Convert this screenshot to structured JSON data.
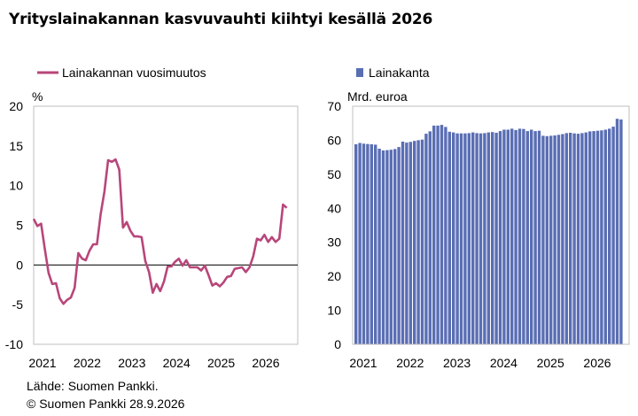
{
  "title": "Yrityslainakannan kasvuvauhti kiihtyi kesällä 2026",
  "source": "Lähde: Suomen Pankki.",
  "copyright": "© Suomen Pankki 28.9.2026",
  "colors": {
    "line": "#b8467a",
    "bar": "#5a6eb4",
    "axis": "#000000",
    "frame": "#bfbfbf"
  },
  "chart_data": [
    {
      "type": "line",
      "legend": "Lainakannan vuosimuutos",
      "unit": "%",
      "x_start": "2021-01",
      "x_tick_labels": [
        "2021",
        "2022",
        "2023",
        "2024",
        "2025",
        "2026"
      ],
      "ylim": [
        -10,
        20
      ],
      "y_ticks": [
        20,
        15,
        10,
        5,
        0,
        -5,
        -10
      ],
      "grid": false,
      "series": [
        {
          "values": [
            5.8,
            4.9,
            5.2,
            2.0,
            -1.0,
            -2.4,
            -2.3,
            -4.2,
            -4.9,
            -4.4,
            -4.1,
            -2.9,
            1.5,
            0.8,
            0.6,
            1.8,
            2.6,
            2.6,
            6.4,
            9.2,
            13.2,
            13.0,
            13.3,
            12.0,
            4.7,
            5.4,
            4.3,
            3.6,
            3.6,
            3.5,
            0.5,
            -0.9,
            -3.5,
            -2.4,
            -3.3,
            -2.1,
            -0.2,
            -0.2,
            0.4,
            0.8,
            -0.1,
            0.6,
            -0.3,
            -0.3,
            -0.3,
            -0.7,
            -0.1,
            -1.3,
            -2.6,
            -2.3,
            -2.7,
            -2.2,
            -1.5,
            -1.4,
            -0.5,
            -0.4,
            -0.3,
            -0.9,
            -0.3,
            1.1,
            3.3,
            3.1,
            3.8,
            2.9,
            3.5,
            2.9,
            3.3,
            7.6,
            7.2
          ]
        }
      ]
    },
    {
      "type": "bar",
      "legend": "Lainakanta",
      "unit": "Mrd. euroa",
      "x_start": "2021-01",
      "x_tick_labels": [
        "2021",
        "2022",
        "2023",
        "2024",
        "2025",
        "2026"
      ],
      "ylim": [
        0,
        70
      ],
      "y_ticks": [
        70,
        60,
        50,
        40,
        30,
        20,
        10,
        0
      ],
      "grid": false,
      "series": [
        {
          "values": [
            58.8,
            59.2,
            59.0,
            58.9,
            58.8,
            58.7,
            57.5,
            57.0,
            57.1,
            57.2,
            57.4,
            58.0,
            59.6,
            59.3,
            59.5,
            59.8,
            60.0,
            60.2,
            61.9,
            62.6,
            64.3,
            64.3,
            64.5,
            63.9,
            62.5,
            62.3,
            62.0,
            62.0,
            62.0,
            62.1,
            62.3,
            62.1,
            62.0,
            62.1,
            62.3,
            62.4,
            62.2,
            62.7,
            63.1,
            63.1,
            63.4,
            63.0,
            63.4,
            63.3,
            62.7,
            63.1,
            62.7,
            62.8,
            61.3,
            61.2,
            61.3,
            61.4,
            61.6,
            61.8,
            62.1,
            62.2,
            62.0,
            61.9,
            62.1,
            62.3,
            62.6,
            62.7,
            62.8,
            62.9,
            63.1,
            63.4,
            64.0,
            66.3,
            66.1
          ]
        }
      ]
    }
  ]
}
